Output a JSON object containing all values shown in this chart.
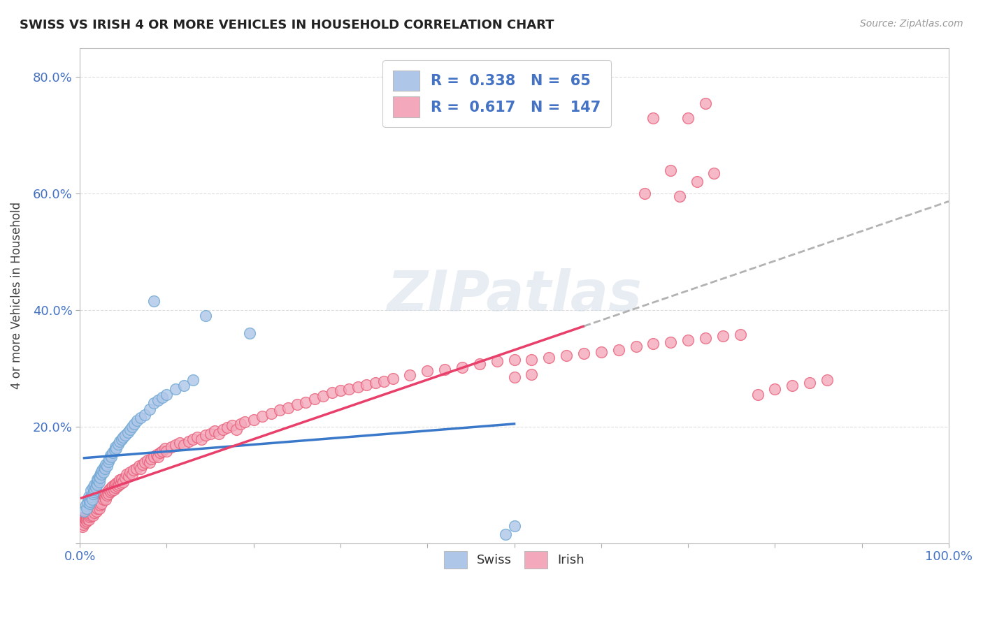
{
  "title": "SWISS VS IRISH 4 OR MORE VEHICLES IN HOUSEHOLD CORRELATION CHART",
  "source": "Source: ZipAtlas.com",
  "ylabel": "4 or more Vehicles in Household",
  "xlim": [
    0,
    1.0
  ],
  "ylim": [
    0,
    0.85
  ],
  "xticks": [
    0.0,
    0.1,
    0.2,
    0.3,
    0.4,
    0.5,
    0.6,
    0.7,
    0.8,
    0.9,
    1.0
  ],
  "yticks": [
    0.0,
    0.2,
    0.4,
    0.6,
    0.8
  ],
  "ytick_labels": [
    "",
    "20.0%",
    "40.0%",
    "60.0%",
    "80.0%"
  ],
  "xtick_labels": [
    "0.0%",
    "",
    "",
    "",
    "",
    "",
    "",
    "",
    "",
    "",
    "100.0%"
  ],
  "swiss_R": 0.338,
  "swiss_N": 65,
  "irish_R": 0.617,
  "irish_N": 147,
  "swiss_color": "#aec6e8",
  "irish_color": "#f4a8bb",
  "swiss_edge": "#6fa8d4",
  "irish_edge": "#e8607a",
  "trend_swiss_color": "#3a78c9",
  "trend_irish_color": "#e8406a",
  "trend_dashed_color": "#aaaaaa",
  "watermark": "ZIPatlas",
  "legend_swiss_label": "Swiss",
  "legend_irish_label": "Irish",
  "swiss_points": [
    [
      0.005,
      0.055
    ],
    [
      0.007,
      0.065
    ],
    [
      0.008,
      0.06
    ],
    [
      0.009,
      0.07
    ],
    [
      0.01,
      0.075
    ],
    [
      0.01,
      0.08
    ],
    [
      0.011,
      0.068
    ],
    [
      0.012,
      0.072
    ],
    [
      0.013,
      0.08
    ],
    [
      0.013,
      0.09
    ],
    [
      0.014,
      0.075
    ],
    [
      0.015,
      0.085
    ],
    [
      0.015,
      0.095
    ],
    [
      0.016,
      0.088
    ],
    [
      0.017,
      0.092
    ],
    [
      0.017,
      0.1
    ],
    [
      0.018,
      0.095
    ],
    [
      0.019,
      0.102
    ],
    [
      0.02,
      0.1
    ],
    [
      0.02,
      0.11
    ],
    [
      0.021,
      0.108
    ],
    [
      0.022,
      0.105
    ],
    [
      0.022,
      0.115
    ],
    [
      0.023,
      0.112
    ],
    [
      0.024,
      0.12
    ],
    [
      0.025,
      0.118
    ],
    [
      0.026,
      0.125
    ],
    [
      0.027,
      0.122
    ],
    [
      0.028,
      0.13
    ],
    [
      0.029,
      0.128
    ],
    [
      0.03,
      0.135
    ],
    [
      0.031,
      0.132
    ],
    [
      0.033,
      0.14
    ],
    [
      0.034,
      0.145
    ],
    [
      0.035,
      0.15
    ],
    [
      0.036,
      0.148
    ],
    [
      0.038,
      0.155
    ],
    [
      0.04,
      0.16
    ],
    [
      0.041,
      0.165
    ],
    [
      0.042,
      0.162
    ],
    [
      0.044,
      0.17
    ],
    [
      0.046,
      0.175
    ],
    [
      0.048,
      0.178
    ],
    [
      0.05,
      0.182
    ],
    [
      0.052,
      0.185
    ],
    [
      0.055,
      0.19
    ],
    [
      0.058,
      0.195
    ],
    [
      0.06,
      0.2
    ],
    [
      0.063,
      0.205
    ],
    [
      0.066,
      0.21
    ],
    [
      0.07,
      0.215
    ],
    [
      0.075,
      0.22
    ],
    [
      0.08,
      0.23
    ],
    [
      0.085,
      0.24
    ],
    [
      0.09,
      0.245
    ],
    [
      0.095,
      0.25
    ],
    [
      0.1,
      0.255
    ],
    [
      0.11,
      0.265
    ],
    [
      0.12,
      0.27
    ],
    [
      0.13,
      0.28
    ],
    [
      0.085,
      0.415
    ],
    [
      0.145,
      0.39
    ],
    [
      0.195,
      0.36
    ],
    [
      0.49,
      0.015
    ],
    [
      0.5,
      0.03
    ]
  ],
  "irish_points": [
    [
      0.002,
      0.035
    ],
    [
      0.003,
      0.028
    ],
    [
      0.004,
      0.04
    ],
    [
      0.004,
      0.032
    ],
    [
      0.005,
      0.038
    ],
    [
      0.005,
      0.045
    ],
    [
      0.006,
      0.035
    ],
    [
      0.006,
      0.042
    ],
    [
      0.007,
      0.04
    ],
    [
      0.007,
      0.048
    ],
    [
      0.008,
      0.038
    ],
    [
      0.008,
      0.045
    ],
    [
      0.009,
      0.042
    ],
    [
      0.009,
      0.05
    ],
    [
      0.01,
      0.048
    ],
    [
      0.01,
      0.04
    ],
    [
      0.011,
      0.045
    ],
    [
      0.011,
      0.052
    ],
    [
      0.012,
      0.048
    ],
    [
      0.012,
      0.055
    ],
    [
      0.013,
      0.05
    ],
    [
      0.013,
      0.058
    ],
    [
      0.014,
      0.052
    ],
    [
      0.014,
      0.06
    ],
    [
      0.015,
      0.055
    ],
    [
      0.015,
      0.048
    ],
    [
      0.016,
      0.058
    ],
    [
      0.016,
      0.065
    ],
    [
      0.017,
      0.06
    ],
    [
      0.017,
      0.052
    ],
    [
      0.018,
      0.062
    ],
    [
      0.018,
      0.07
    ],
    [
      0.019,
      0.065
    ],
    [
      0.019,
      0.055
    ],
    [
      0.02,
      0.068
    ],
    [
      0.02,
      0.06
    ],
    [
      0.021,
      0.065
    ],
    [
      0.022,
      0.07
    ],
    [
      0.022,
      0.06
    ],
    [
      0.023,
      0.075
    ],
    [
      0.023,
      0.065
    ],
    [
      0.024,
      0.072
    ],
    [
      0.025,
      0.078
    ],
    [
      0.025,
      0.068
    ],
    [
      0.026,
      0.08
    ],
    [
      0.027,
      0.075
    ],
    [
      0.028,
      0.082
    ],
    [
      0.029,
      0.078
    ],
    [
      0.03,
      0.085
    ],
    [
      0.03,
      0.075
    ],
    [
      0.031,
      0.082
    ],
    [
      0.032,
      0.088
    ],
    [
      0.033,
      0.085
    ],
    [
      0.034,
      0.092
    ],
    [
      0.035,
      0.088
    ],
    [
      0.036,
      0.095
    ],
    [
      0.037,
      0.09
    ],
    [
      0.038,
      0.098
    ],
    [
      0.039,
      0.092
    ],
    [
      0.04,
      0.1
    ],
    [
      0.041,
      0.095
    ],
    [
      0.042,
      0.102
    ],
    [
      0.043,
      0.098
    ],
    [
      0.044,
      0.105
    ],
    [
      0.045,
      0.1
    ],
    [
      0.046,
      0.108
    ],
    [
      0.047,
      0.102
    ],
    [
      0.048,
      0.11
    ],
    [
      0.05,
      0.105
    ],
    [
      0.052,
      0.112
    ],
    [
      0.054,
      0.118
    ],
    [
      0.056,
      0.115
    ],
    [
      0.058,
      0.122
    ],
    [
      0.06,
      0.118
    ],
    [
      0.062,
      0.125
    ],
    [
      0.065,
      0.128
    ],
    [
      0.068,
      0.132
    ],
    [
      0.07,
      0.128
    ],
    [
      0.072,
      0.135
    ],
    [
      0.075,
      0.138
    ],
    [
      0.078,
      0.142
    ],
    [
      0.08,
      0.138
    ],
    [
      0.082,
      0.145
    ],
    [
      0.085,
      0.148
    ],
    [
      0.088,
      0.152
    ],
    [
      0.09,
      0.148
    ],
    [
      0.092,
      0.155
    ],
    [
      0.095,
      0.158
    ],
    [
      0.098,
      0.162
    ],
    [
      0.1,
      0.158
    ],
    [
      0.105,
      0.165
    ],
    [
      0.11,
      0.168
    ],
    [
      0.115,
      0.172
    ],
    [
      0.12,
      0.168
    ],
    [
      0.125,
      0.175
    ],
    [
      0.13,
      0.178
    ],
    [
      0.135,
      0.182
    ],
    [
      0.14,
      0.178
    ],
    [
      0.145,
      0.185
    ],
    [
      0.15,
      0.188
    ],
    [
      0.155,
      0.192
    ],
    [
      0.16,
      0.188
    ],
    [
      0.165,
      0.195
    ],
    [
      0.17,
      0.198
    ],
    [
      0.175,
      0.202
    ],
    [
      0.18,
      0.195
    ],
    [
      0.185,
      0.205
    ],
    [
      0.19,
      0.208
    ],
    [
      0.2,
      0.212
    ],
    [
      0.21,
      0.218
    ],
    [
      0.22,
      0.222
    ],
    [
      0.23,
      0.228
    ],
    [
      0.24,
      0.232
    ],
    [
      0.25,
      0.238
    ],
    [
      0.26,
      0.242
    ],
    [
      0.27,
      0.248
    ],
    [
      0.28,
      0.252
    ],
    [
      0.29,
      0.258
    ],
    [
      0.3,
      0.262
    ],
    [
      0.31,
      0.265
    ],
    [
      0.32,
      0.268
    ],
    [
      0.33,
      0.272
    ],
    [
      0.34,
      0.275
    ],
    [
      0.35,
      0.278
    ],
    [
      0.36,
      0.282
    ],
    [
      0.38,
      0.288
    ],
    [
      0.4,
      0.295
    ],
    [
      0.42,
      0.298
    ],
    [
      0.44,
      0.302
    ],
    [
      0.46,
      0.308
    ],
    [
      0.48,
      0.312
    ],
    [
      0.5,
      0.315
    ],
    [
      0.52,
      0.315
    ],
    [
      0.54,
      0.318
    ],
    [
      0.56,
      0.322
    ],
    [
      0.58,
      0.325
    ],
    [
      0.6,
      0.328
    ],
    [
      0.62,
      0.332
    ],
    [
      0.64,
      0.338
    ],
    [
      0.66,
      0.342
    ],
    [
      0.68,
      0.345
    ],
    [
      0.7,
      0.348
    ],
    [
      0.72,
      0.352
    ],
    [
      0.74,
      0.355
    ],
    [
      0.76,
      0.358
    ],
    [
      0.78,
      0.255
    ],
    [
      0.8,
      0.265
    ],
    [
      0.82,
      0.27
    ],
    [
      0.84,
      0.275
    ],
    [
      0.86,
      0.28
    ],
    [
      0.65,
      0.6
    ],
    [
      0.68,
      0.64
    ],
    [
      0.7,
      0.73
    ],
    [
      0.72,
      0.755
    ],
    [
      0.66,
      0.73
    ],
    [
      0.69,
      0.595
    ],
    [
      0.71,
      0.62
    ],
    [
      0.73,
      0.635
    ],
    [
      0.5,
      0.285
    ],
    [
      0.52,
      0.29
    ]
  ]
}
